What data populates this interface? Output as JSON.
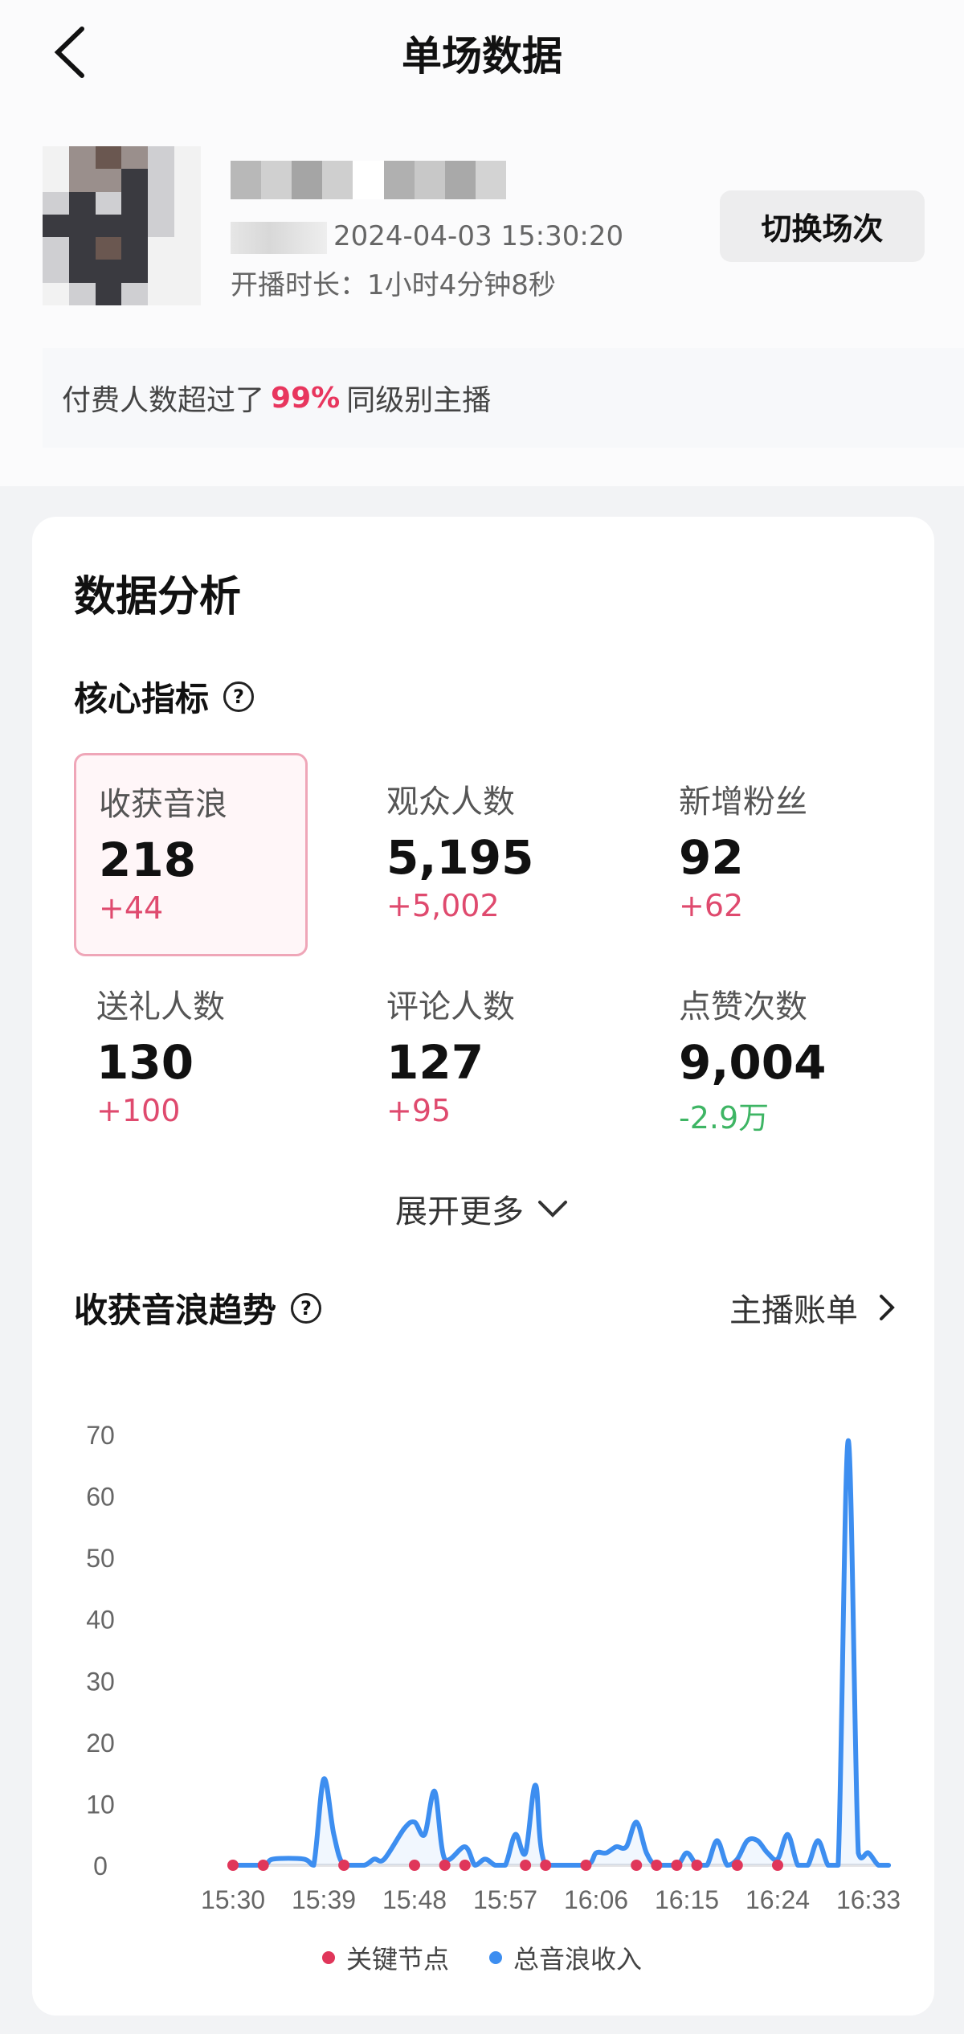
{
  "header": {
    "title": "单场数据",
    "back_icon": "chevron-left-icon"
  },
  "session": {
    "start_time": "2024-04-03 15:30:20",
    "duration": "开播时长：1小时4分钟8秒",
    "switch_label": "切换场次"
  },
  "banner": {
    "prefix": "付费人数超过了",
    "highlight": "99%",
    "suffix": "同级别主播"
  },
  "analysis": {
    "title": "数据分析",
    "core_title": "核心指标",
    "metrics": [
      {
        "label": "收获音浪",
        "value": "218",
        "delta": "+44",
        "selected": true
      },
      {
        "label": "观众人数",
        "value": "5,195",
        "delta": "+5,002"
      },
      {
        "label": "新增粉丝",
        "value": "92",
        "delta": "+62"
      },
      {
        "label": "送礼人数",
        "value": "130",
        "delta": "+100"
      },
      {
        "label": "评论人数",
        "value": "127",
        "delta": "+95"
      },
      {
        "label": "点赞次数",
        "value": "9,004",
        "delta": "-2.9万"
      }
    ],
    "expand_label": "展开更多",
    "trend_title": "收获音浪趋势",
    "bill_label": "主播账单"
  },
  "colors": {
    "accent": "#e8365e",
    "line": "#3d8ef0",
    "node": "#e0365a",
    "negative": "#3eb564"
  },
  "chart_data": {
    "type": "line",
    "ylim": [
      0,
      70
    ],
    "yticks": [
      "0",
      "10",
      "20",
      "30",
      "40",
      "50",
      "60",
      "70"
    ],
    "xticks": [
      "15:30",
      "15:39",
      "15:48",
      "15:57",
      "16:06",
      "16:15",
      "16:24",
      "16:33"
    ],
    "xlim": [
      "15:30",
      "16:35"
    ],
    "legend": [
      {
        "name": "关键节点",
        "color": "#e0365a"
      },
      {
        "name": "总音浪收入",
        "color": "#3d8ef0"
      }
    ],
    "legend_position": "bottom",
    "series": [
      {
        "name": "总音浪收入",
        "points": [
          [
            "15:30",
            0
          ],
          [
            "15:33",
            0
          ],
          [
            "15:34",
            1
          ],
          [
            "15:37",
            1
          ],
          [
            "15:38",
            0
          ],
          [
            "15:39",
            14
          ],
          [
            "15:40",
            5
          ],
          [
            "15:41",
            0
          ],
          [
            "15:43",
            0
          ],
          [
            "15:44",
            1
          ],
          [
            "15:45",
            1
          ],
          [
            "15:47",
            6
          ],
          [
            "15:48",
            7
          ],
          [
            "15:49",
            5
          ],
          [
            "15:50",
            12
          ],
          [
            "15:51",
            1
          ],
          [
            "15:53",
            3
          ],
          [
            "15:54",
            0
          ],
          [
            "15:55",
            1
          ],
          [
            "15:56",
            0
          ],
          [
            "15:57",
            0
          ],
          [
            "15:58",
            5
          ],
          [
            "15:59",
            2
          ],
          [
            "16:00",
            13
          ],
          [
            "16:01",
            0
          ],
          [
            "16:05",
            0
          ],
          [
            "16:06",
            2
          ],
          [
            "16:07",
            2
          ],
          [
            "16:08",
            3
          ],
          [
            "16:09",
            3
          ],
          [
            "16:10",
            7
          ],
          [
            "16:11",
            2
          ],
          [
            "16:12",
            0
          ],
          [
            "16:14",
            0
          ],
          [
            "16:15",
            2
          ],
          [
            "16:16",
            0
          ],
          [
            "16:17",
            0
          ],
          [
            "16:18",
            4
          ],
          [
            "16:19",
            0
          ],
          [
            "16:20",
            1
          ],
          [
            "16:21",
            4
          ],
          [
            "16:22",
            4
          ],
          [
            "16:23",
            2
          ],
          [
            "16:24",
            1
          ],
          [
            "16:25",
            5
          ],
          [
            "16:26",
            0
          ],
          [
            "16:27",
            0
          ],
          [
            "16:28",
            4
          ],
          [
            "16:29",
            0
          ],
          [
            "16:30",
            0
          ],
          [
            "16:31",
            69
          ],
          [
            "16:32",
            2
          ],
          [
            "16:33",
            2
          ],
          [
            "16:34",
            0
          ],
          [
            "16:35",
            0
          ]
        ]
      },
      {
        "name": "关键节点",
        "points": [
          [
            "15:30",
            0
          ],
          [
            "15:33",
            0
          ],
          [
            "15:41",
            0
          ],
          [
            "15:48",
            0
          ],
          [
            "15:51",
            0
          ],
          [
            "15:53",
            0
          ],
          [
            "15:59",
            0
          ],
          [
            "16:01",
            0
          ],
          [
            "16:05",
            0
          ],
          [
            "16:10",
            0
          ],
          [
            "16:12",
            0
          ],
          [
            "16:14",
            0
          ],
          [
            "16:16",
            0
          ],
          [
            "16:20",
            0
          ],
          [
            "16:24",
            0
          ]
        ]
      }
    ]
  }
}
